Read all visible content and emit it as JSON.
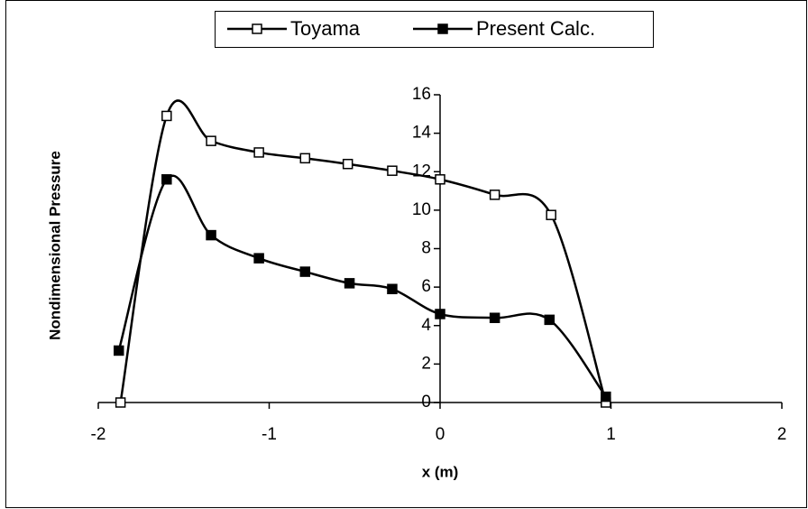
{
  "chart_data": {
    "type": "scatter",
    "x_label": "x (m)",
    "y_label": "Nondimensional Pressure",
    "xlim": [
      -2,
      2
    ],
    "xticks": [
      -2,
      -1,
      0,
      1,
      2
    ],
    "ylim": [
      0,
      16
    ],
    "yticks": [
      0,
      2,
      4,
      6,
      8,
      10,
      12,
      14,
      16
    ],
    "legend": "top",
    "smooth": true,
    "series": [
      {
        "name": "Toyama",
        "color": "#000000",
        "marker": "open-square",
        "x": [
          -1.87,
          -1.6,
          -1.34,
          -1.06,
          -0.79,
          -0.54,
          -0.28,
          0.0,
          0.32,
          0.65,
          0.97
        ],
        "values": [
          0,
          14.9,
          13.6,
          13.0,
          12.7,
          12.4,
          12.05,
          11.6,
          10.8,
          9.75,
          0
        ]
      },
      {
        "name": "Present Calc.",
        "color": "#000000",
        "marker": "filled-square",
        "x": [
          -1.88,
          -1.6,
          -1.34,
          -1.06,
          -0.79,
          -0.53,
          -0.28,
          0.0,
          0.32,
          0.64,
          0.97
        ],
        "values": [
          2.7,
          11.6,
          8.7,
          7.5,
          6.8,
          6.2,
          5.9,
          4.6,
          4.4,
          4.3,
          0.3
        ]
      }
    ]
  }
}
